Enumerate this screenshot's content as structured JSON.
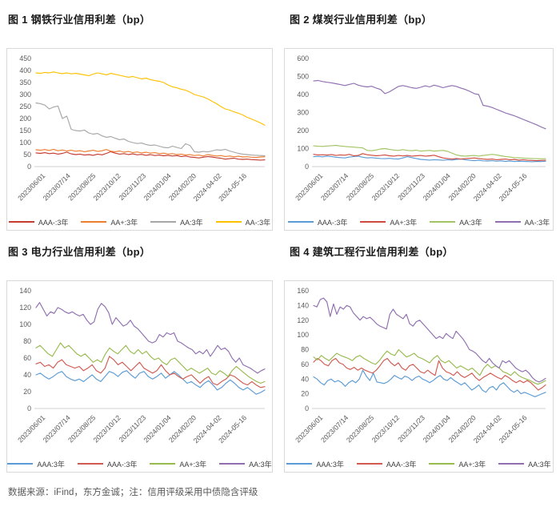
{
  "footer": {
    "source": "数据来源：iFind，东方金诚；注：信用评级采用中债隐含评级"
  },
  "chart_data": [
    {
      "type": "line",
      "title": "图 1 钢铁行业信用利差（bp）",
      "xlabel": "",
      "ylabel": "",
      "ylim": [
        0,
        450
      ],
      "ytick_step": 50,
      "grid": false,
      "legend_position": "bottom",
      "x_labels": [
        "2023/06/01",
        "2023/07/14",
        "2023/08/25",
        "2023/10/12",
        "2023/11/23",
        "2024/01/04",
        "2024/02/20",
        "2024-04-02",
        "2024-05-16"
      ],
      "series": [
        {
          "name": "AAA-:3年",
          "color": "#C43B30",
          "values": [
            57,
            55,
            58,
            54,
            56,
            52,
            55,
            60,
            53,
            50,
            52,
            48,
            50,
            47,
            52,
            49,
            55,
            62,
            56,
            52,
            54,
            50,
            53,
            49,
            51,
            47,
            50,
            46,
            48,
            45,
            47,
            44,
            46,
            42,
            44,
            40,
            38,
            36,
            39,
            42,
            40,
            37,
            35,
            31,
            33,
            35,
            31,
            30,
            31,
            29,
            28,
            27,
            28
          ]
        },
        {
          "name": "AA+:3年",
          "color": "#ED7D31",
          "values": [
            70,
            68,
            71,
            67,
            72,
            66,
            69,
            65,
            68,
            64,
            66,
            62,
            65,
            68,
            63,
            66,
            71,
            64,
            62,
            65,
            60,
            63,
            58,
            61,
            57,
            60,
            56,
            58,
            54,
            56,
            52,
            54,
            50,
            52,
            48,
            50,
            46,
            48,
            44,
            50,
            47,
            44,
            46,
            42,
            44,
            41,
            43,
            40,
            41,
            39,
            38,
            40,
            41
          ]
        },
        {
          "name": "AA:3年",
          "color": "#A6A6A6",
          "values": [
            265,
            262,
            256,
            240,
            248,
            252,
            200,
            210,
            155,
            150,
            148,
            152,
            140,
            135,
            138,
            128,
            122,
            125,
            118,
            112,
            115,
            105,
            100,
            96,
            98,
            92,
            88,
            90,
            85,
            80,
            78,
            85,
            80,
            75,
            95,
            88,
            62,
            60,
            63,
            61,
            65,
            70,
            68,
            72,
            65,
            60,
            55,
            52,
            50,
            48,
            47,
            46,
            45
          ]
        },
        {
          "name": "AA-:3年",
          "color": "#FFC000",
          "values": [
            390,
            388,
            392,
            390,
            394,
            390,
            387,
            390,
            386,
            388,
            385,
            382,
            378,
            385,
            390,
            386,
            382,
            388,
            384,
            380,
            376,
            372,
            375,
            370,
            365,
            368,
            362,
            358,
            355,
            350,
            340,
            332,
            328,
            322,
            318,
            310,
            300,
            295,
            290,
            282,
            272,
            262,
            250,
            240,
            235,
            228,
            222,
            215,
            205,
            198,
            190,
            182,
            172
          ]
        }
      ]
    },
    {
      "type": "line",
      "title": "图 2 煤炭行业信用利差（bp）",
      "xlabel": "",
      "ylabel": "",
      "ylim": [
        0,
        600
      ],
      "ytick_step": 100,
      "grid": false,
      "legend_position": "bottom",
      "x_labels": [
        "2023/06/01",
        "2023/07/14",
        "2023/08/25",
        "2023/10/12",
        "2023/11/23",
        "2024/01/04",
        "2024/02/20",
        "2024-04-02",
        "2024-05-16"
      ],
      "series": [
        {
          "name": "AAA-:3年",
          "color": "#5B9BD5",
          "values": [
            55,
            57,
            54,
            58,
            56,
            52,
            50,
            48,
            53,
            56,
            58,
            52,
            48,
            50,
            47,
            45,
            44,
            46,
            43,
            42,
            48,
            55,
            50,
            45,
            40,
            38,
            36,
            38,
            37,
            35,
            38,
            36,
            40,
            42,
            38,
            35,
            33,
            35,
            32,
            31,
            33,
            30,
            32,
            29,
            31,
            28,
            30,
            29,
            28,
            27,
            29,
            28,
            30
          ]
        },
        {
          "name": "AA+:3年",
          "color": "#CF4A3E",
          "values": [
            68,
            65,
            66,
            64,
            67,
            62,
            65,
            63,
            68,
            60,
            62,
            72,
            66,
            63,
            60,
            62,
            65,
            60,
            58,
            62,
            59,
            62,
            58,
            60,
            62,
            58,
            60,
            63,
            55,
            48,
            45,
            42,
            45,
            42,
            44,
            46,
            48,
            45,
            42,
            40,
            42,
            38,
            40,
            42,
            38,
            40,
            36,
            38,
            35,
            34,
            33,
            34,
            35
          ]
        },
        {
          "name": "AA:3年",
          "color": "#A2C464",
          "values": [
            115,
            113,
            112,
            114,
            116,
            118,
            114,
            112,
            110,
            108,
            106,
            104,
            90,
            88,
            92,
            98,
            100,
            95,
            92,
            90,
            94,
            90,
            88,
            91,
            86,
            88,
            90,
            86,
            88,
            90,
            85,
            75,
            65,
            60,
            58,
            60,
            62,
            58,
            62,
            65,
            68,
            65,
            60,
            56,
            53,
            50,
            49,
            47,
            46,
            45,
            44,
            43,
            44
          ]
        },
        {
          "name": "AA-:3年",
          "color": "#8F6FB0",
          "values": [
            475,
            478,
            472,
            468,
            465,
            460,
            455,
            450,
            456,
            462,
            452,
            446,
            442,
            446,
            436,
            428,
            405,
            415,
            430,
            445,
            450,
            444,
            438,
            434,
            440,
            448,
            442,
            452,
            446,
            438,
            444,
            450,
            445,
            436,
            428,
            418,
            405,
            400,
            340,
            335,
            328,
            318,
            308,
            298,
            290,
            282,
            272,
            262,
            252,
            242,
            232,
            220,
            210
          ]
        }
      ]
    },
    {
      "type": "line",
      "title": "图 3 电力行业信用利差（bp）",
      "xlabel": "",
      "ylabel": "",
      "ylim": [
        0,
        140
      ],
      "ytick_step": 20,
      "grid": false,
      "legend_position": "bottom",
      "x_labels": [
        "2023/06/01",
        "2023/07/14",
        "2023/08/25",
        "2023/10/12",
        "2023/11/23",
        "2024/01/04",
        "2024/02/20",
        "2024-04-02",
        "2024-05-16"
      ],
      "series": [
        {
          "name": "AAA:3年",
          "color": "#5B9BD5",
          "values": [
            40,
            42,
            38,
            35,
            38,
            42,
            44,
            38,
            35,
            33,
            35,
            32,
            36,
            40,
            35,
            32,
            38,
            44,
            42,
            38,
            43,
            45,
            40,
            36,
            42,
            44,
            38,
            35,
            38,
            42,
            36,
            40,
            44,
            40,
            35,
            30,
            32,
            28,
            25,
            30,
            33,
            28,
            22,
            25,
            30,
            34,
            30,
            25,
            22,
            25,
            21,
            17,
            19,
            22
          ]
        },
        {
          "name": "AAA-:3年",
          "color": "#D05A50",
          "values": [
            53,
            55,
            50,
            52,
            48,
            55,
            58,
            52,
            50,
            48,
            50,
            45,
            48,
            52,
            45,
            42,
            48,
            62,
            58,
            52,
            55,
            50,
            45,
            50,
            55,
            48,
            45,
            42,
            45,
            52,
            45,
            40,
            42,
            38,
            35,
            38,
            40,
            35,
            30,
            35,
            38,
            30,
            28,
            32,
            35,
            40,
            38,
            34,
            30,
            28,
            32,
            28,
            25,
            26
          ]
        },
        {
          "name": "AA+:3年",
          "color": "#98BB4F",
          "values": [
            72,
            75,
            70,
            65,
            62,
            70,
            78,
            72,
            75,
            70,
            65,
            62,
            65,
            60,
            55,
            58,
            55,
            65,
            72,
            68,
            65,
            70,
            75,
            68,
            65,
            70,
            65,
            68,
            62,
            58,
            60,
            55,
            52,
            58,
            60,
            55,
            50,
            45,
            48,
            45,
            42,
            45,
            48,
            42,
            40,
            45,
            42,
            38,
            45,
            50,
            46,
            42,
            38,
            35,
            32,
            30,
            32
          ]
        },
        {
          "name": "AA:3年",
          "color": "#8F6FB0",
          "values": [
            120,
            126,
            118,
            110,
            115,
            113,
            120,
            118,
            115,
            113,
            115,
            112,
            110,
            112,
            105,
            100,
            103,
            118,
            125,
            121,
            114,
            100,
            108,
            103,
            98,
            100,
            105,
            98,
            95,
            90,
            85,
            80,
            78,
            80,
            88,
            85,
            90,
            88,
            90,
            80,
            78,
            75,
            72,
            70,
            65,
            68,
            65,
            70,
            62,
            68,
            75,
            70,
            72,
            68,
            60,
            55,
            60,
            52,
            50,
            48,
            45,
            42,
            45,
            47
          ]
        }
      ]
    },
    {
      "type": "line",
      "title": "图 4 建筑工程行业信用利差（bp）",
      "xlabel": "",
      "ylabel": "",
      "ylim": [
        0,
        160
      ],
      "ytick_step": 20,
      "grid": false,
      "legend_position": "bottom",
      "x_labels": [
        "2023/06/01",
        "2023/07/14",
        "2023/08/25",
        "2023/10/12",
        "2023/11/23",
        "2024/01/04",
        "2024/02/20",
        "2024-04-02",
        "2024-05-16"
      ],
      "series": [
        {
          "name": "AAA:3年",
          "color": "#5B9BD5",
          "values": [
            43,
            40,
            35,
            32,
            38,
            40,
            36,
            38,
            35,
            30,
            35,
            38,
            35,
            40,
            52,
            44,
            38,
            48,
            36,
            35,
            34,
            36,
            40,
            45,
            42,
            40,
            44,
            42,
            38,
            42,
            44,
            40,
            38,
            35,
            38,
            42,
            45,
            40,
            38,
            42,
            38,
            35,
            32,
            35,
            30,
            25,
            28,
            32,
            25,
            22,
            28,
            30,
            25,
            32,
            35,
            30,
            25,
            22,
            25,
            20,
            22,
            20,
            18,
            16,
            18,
            20,
            22
          ]
        },
        {
          "name": "AAA-:3年",
          "color": "#D05A50",
          "values": [
            63,
            68,
            65,
            60,
            58,
            65,
            68,
            62,
            60,
            55,
            53,
            56,
            52,
            55,
            52,
            50,
            48,
            52,
            58,
            65,
            68,
            62,
            58,
            62,
            55,
            52,
            58,
            60,
            55,
            50,
            48,
            52,
            48,
            45,
            65,
            55,
            50,
            48,
            45,
            50,
            45,
            42,
            45,
            48,
            42,
            38,
            42,
            45,
            48,
            45,
            42,
            40,
            45,
            42,
            38,
            35,
            38,
            35,
            38,
            35,
            30,
            25,
            28,
            32
          ]
        },
        {
          "name": "AA+:3年",
          "color": "#98BB4F",
          "values": [
            70,
            66,
            72,
            68,
            65,
            70,
            75,
            72,
            70,
            68,
            65,
            70,
            72,
            68,
            65,
            62,
            60,
            65,
            72,
            78,
            74,
            72,
            80,
            75,
            70,
            72,
            75,
            70,
            68,
            65,
            62,
            68,
            72,
            65,
            62,
            65,
            60,
            55,
            58,
            55,
            52,
            55,
            50,
            45,
            55,
            60,
            55,
            58,
            55,
            50,
            48,
            45,
            50,
            45,
            42,
            40,
            38,
            35,
            33,
            35,
            38
          ]
        },
        {
          "name": "AA:3年",
          "color": "#8F6FB0",
          "values": [
            140,
            138,
            148,
            150,
            145,
            125,
            142,
            128,
            138,
            135,
            140,
            138,
            130,
            125,
            120,
            125,
            122,
            124,
            120,
            115,
            112,
            110,
            108,
            128,
            135,
            128,
            125,
            122,
            128,
            115,
            112,
            118,
            120,
            115,
            110,
            105,
            100,
            95,
            98,
            95,
            102,
            98,
            95,
            105,
            100,
            95,
            88,
            80,
            78,
            75,
            70,
            65,
            62,
            68,
            62,
            58,
            55,
            65,
            62,
            65,
            60,
            55,
            52,
            50,
            52,
            48,
            42,
            38,
            36,
            38,
            41
          ]
        }
      ]
    }
  ]
}
